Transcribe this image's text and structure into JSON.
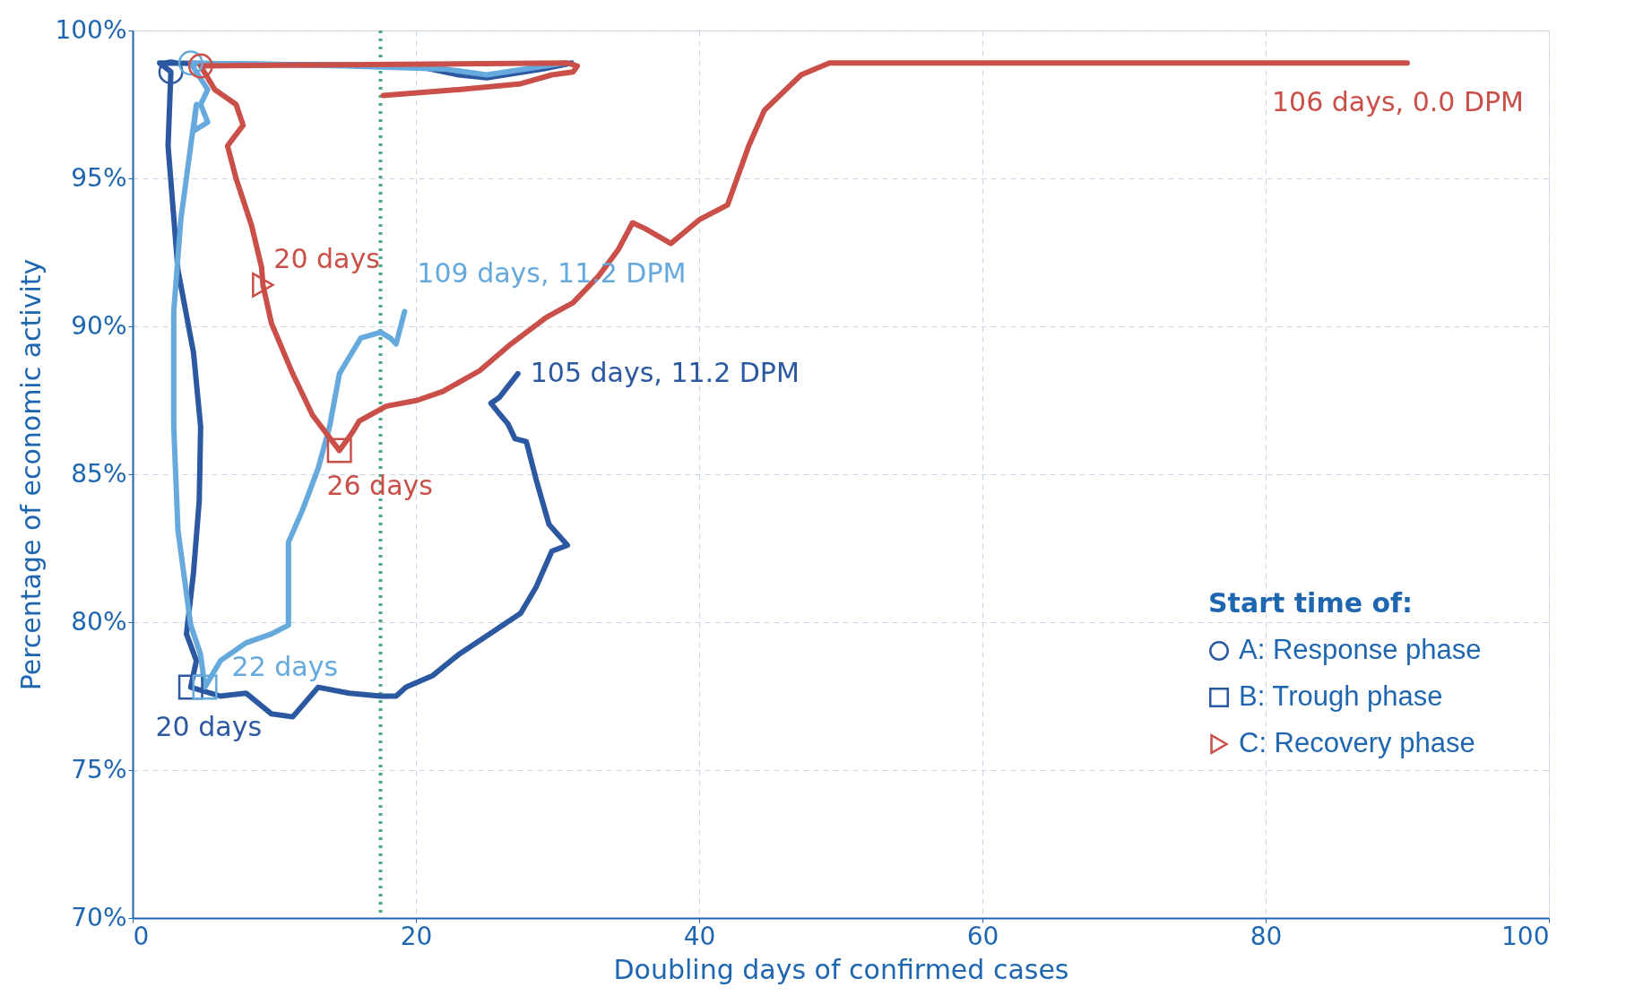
{
  "chart_data": {
    "type": "line",
    "xlabel": "Doubling days of confirmed cases",
    "ylabel": "Percentage of economic activity",
    "xlim": [
      0,
      100
    ],
    "xticks": [
      0,
      20,
      40,
      60,
      80,
      100
    ],
    "ylim": [
      70,
      100
    ],
    "yticks": [
      {
        "value": 70,
        "label": "70%"
      },
      {
        "value": 75,
        "label": "75%"
      },
      {
        "value": 80,
        "label": "80%"
      },
      {
        "value": 85,
        "label": "85%"
      },
      {
        "value": 90,
        "label": "90%"
      },
      {
        "value": 95,
        "label": "95%"
      },
      {
        "value": 100,
        "label": "100%"
      }
    ],
    "grid": true,
    "line_style": "solid",
    "marker": "none",
    "legend": "bottom right",
    "legend_title": "Start time of:",
    "series": [
      {
        "color": "#2b58a0",
        "x": [
          31.0,
          29.0,
          25.0,
          23.0,
          20.0,
          1.9,
          2.7,
          2.5,
          3.2,
          4.3,
          4.8,
          4.7,
          4.3,
          3.8,
          4.5,
          4.1,
          6.2,
          8.0,
          9.8,
          11.3,
          13.1,
          15.3,
          17.5,
          18.6,
          19.3,
          21.2,
          23.0,
          25.2,
          27.4,
          28.5,
          29.6,
          30.7,
          29.4,
          28.5,
          27.8,
          27.0,
          26.5,
          25.8,
          25.3,
          25.9,
          27.2
        ],
        "values": [
          98.9,
          98.7,
          98.4,
          98.5,
          98.8,
          98.9,
          98.6,
          96.1,
          91.9,
          89.1,
          86.6,
          84.1,
          81.7,
          79.6,
          78.7,
          77.8,
          77.5,
          77.6,
          76.9,
          76.8,
          77.8,
          77.6,
          77.5,
          77.5,
          77.8,
          78.2,
          78.9,
          79.6,
          80.3,
          81.2,
          82.4,
          82.6,
          83.3,
          84.8,
          86.1,
          86.2,
          86.7,
          87.1,
          87.4,
          87.6,
          88.4
        ]
      },
      {
        "color": "#66a9dd",
        "x": [
          30.5,
          25.0,
          22.0,
          15.0,
          4.1,
          5.3,
          4.8,
          5.3,
          4.3,
          4.5,
          4.1,
          3.4,
          2.9,
          2.9,
          3.2,
          4.1,
          4.8,
          5.1,
          6.2,
          8.0,
          9.8,
          11.0,
          11.0,
          12.0,
          13.1,
          13.9,
          14.6,
          16.1,
          17.5,
          18.2,
          18.6,
          19.2
        ],
        "values": [
          98.9,
          98.5,
          98.7,
          98.8,
          98.9,
          98.0,
          97.5,
          96.9,
          96.6,
          97.5,
          96.1,
          93.6,
          90.5,
          86.6,
          83.1,
          79.9,
          78.9,
          77.8,
          78.7,
          79.3,
          79.6,
          79.9,
          82.7,
          83.8,
          85.2,
          86.6,
          88.4,
          89.6,
          89.8,
          89.6,
          89.4,
          90.5
        ]
      },
      {
        "color": "#c94f48",
        "x": [
          17.7,
          23.0,
          27.4,
          29.6,
          31.1,
          31.4,
          30.7,
          4.8,
          5.8,
          7.3,
          7.8,
          6.7,
          7.3,
          8.4,
          9.1,
          9.2,
          9.8,
          11.3,
          12.7,
          14.6,
          15.5,
          16.0,
          17.9,
          20.1,
          21.9,
          24.5,
          26.7,
          29.2,
          31.1,
          32.9,
          34.3,
          35.3,
          36.2,
          38.0,
          40.0,
          42.0,
          43.5,
          44.6,
          47.2,
          49.2,
          90.0
        ],
        "values": [
          97.8,
          98.0,
          98.2,
          98.5,
          98.6,
          98.8,
          98.9,
          98.8,
          98.0,
          97.5,
          96.8,
          96.1,
          95.0,
          93.4,
          92.0,
          91.4,
          90.1,
          88.4,
          87.0,
          85.8,
          86.4,
          86.8,
          87.3,
          87.5,
          87.8,
          88.5,
          89.4,
          90.3,
          90.8,
          91.7,
          92.6,
          93.5,
          93.3,
          92.8,
          93.6,
          94.1,
          96.1,
          97.3,
          98.5,
          98.9,
          98.9
        ]
      },
      {
        "type": "scatter",
        "name": "A: Response phase",
        "marker": "circle",
        "colors": [
          "#2b58a0",
          "#66a9dd",
          "#c94f48"
        ],
        "x": [
          2.7,
          4.1,
          4.8
        ],
        "values": [
          98.6,
          98.9,
          98.8
        ]
      },
      {
        "type": "scatter",
        "name": "B: Trough phase",
        "marker": "square",
        "colors": [
          "#2b58a0",
          "#66a9dd",
          "#c94f48"
        ],
        "x": [
          4.1,
          5.1,
          14.6
        ],
        "values": [
          77.8,
          77.8,
          85.8
        ]
      },
      {
        "type": "scatter",
        "name": "C: Recovery phase",
        "marker": "triangle",
        "colors": [
          "#c94f48"
        ],
        "x": [
          9.2
        ],
        "values": [
          91.4
        ]
      }
    ],
    "ref_lines": [
      {
        "axis": "x",
        "value": 17.5,
        "color": "#4aa884",
        "line_style": "dotted"
      }
    ],
    "annotations": [
      {
        "text": "20 days",
        "x": 9.2,
        "y": 91.4
      },
      {
        "text": "26 days",
        "x": 14.6,
        "y": 85.8
      },
      {
        "text": "22 days",
        "x": 5.1,
        "y": 77.8
      },
      {
        "text": "20 days",
        "x": 4.1,
        "y": 77.8
      },
      {
        "text": "109 days, 11.2 DPM",
        "x": 19.2,
        "y": 90.5
      },
      {
        "text": "105 days, 11.2 DPM",
        "x": 27.2,
        "y": 88.4
      },
      {
        "text": "106 days, 0.0 DPM",
        "x": 90.0,
        "y": 98.9
      }
    ]
  }
}
